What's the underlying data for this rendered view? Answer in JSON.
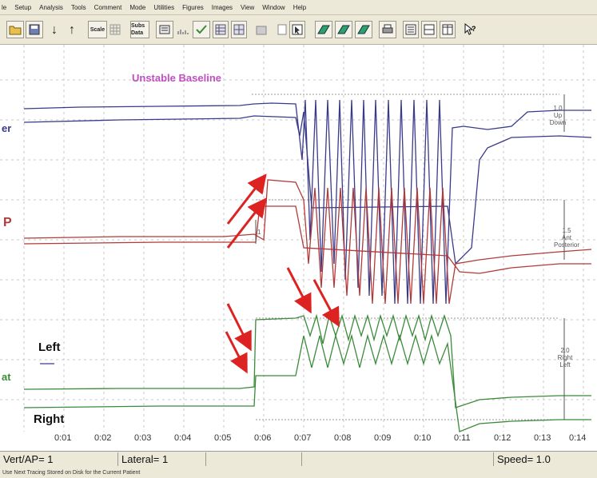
{
  "menu": [
    "le",
    "Setup",
    "Analysis",
    "Tools",
    "Comment",
    "Mode",
    "Utilities",
    "Figures",
    "Images",
    "View",
    "Window",
    "Help"
  ],
  "toolbar": {
    "scale_label": "Scale",
    "subtract_label": "Subs Data"
  },
  "plot": {
    "title": "Unstable Baseline",
    "channels": {
      "top_label": "er",
      "mid_label": "P",
      "bottom_label": "at"
    },
    "side_labels": {
      "updown": {
        "value": "1.0",
        "up": "Up",
        "down": "Down"
      },
      "anterior": {
        "value": "1.5",
        "a": "Ant",
        "p": "Posterior"
      },
      "right": {
        "value": "2.0",
        "r": "Right",
        "l": "Left"
      }
    },
    "left_label": "Left",
    "right_label": "Right",
    "small_marker": "1"
  },
  "time_axis": {
    "ticks": [
      "0:01",
      "0:02",
      "0:03",
      "0:04",
      "0:05",
      "0:06",
      "0:07",
      "0:08",
      "0:09",
      "0:10",
      "0:11",
      "0:12",
      "0:13",
      "0:14"
    ]
  },
  "status": {
    "vert_ap": "Vert/AP= 1",
    "lateral": "Lateral= 1",
    "speed": "Speed= 1.0"
  },
  "message": "Use Next Tracing Stored on Disk for the Current Patient",
  "colors": {
    "top_trace": "#3a3a8a",
    "mid_trace": "#b23a3a",
    "bottom_trace": "#3a8a3a",
    "arrows": "#dd2222",
    "title": "#c050c0"
  }
}
